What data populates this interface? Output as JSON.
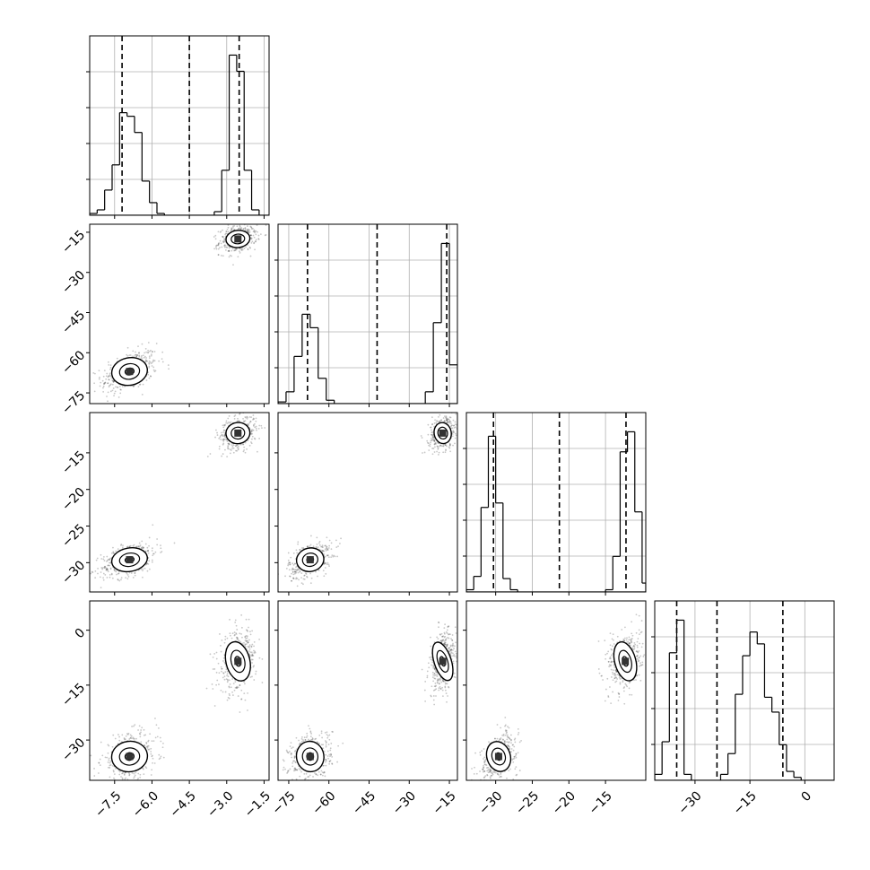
{
  "chart_data": {
    "type": "corner",
    "title": "",
    "parameters": [
      {
        "id": "p1",
        "label": "",
        "range": [
          -8.5,
          -1.3
        ],
        "ticks": [
          -7.5,
          -6.0,
          -4.5,
          -3.0,
          -1.5
        ],
        "tick_labels": [
          "−7.5",
          "−6.0",
          "−4.5",
          "−3.0",
          "−1.5"
        ]
      },
      {
        "id": "p2",
        "label": "",
        "range": [
          -79,
          -12
        ],
        "ticks": [
          -75,
          -60,
          -45,
          -30,
          -15
        ],
        "tick_labels": [
          "−75",
          "−60",
          "−45",
          "−30",
          "−15"
        ]
      },
      {
        "id": "p3",
        "label": "",
        "range": [
          -34,
          -9.5
        ],
        "ticks": [
          -30,
          -25,
          -20,
          -15
        ],
        "tick_labels": [
          "−30",
          "−25",
          "−20",
          "−15"
        ]
      },
      {
        "id": "p4",
        "label": "",
        "range": [
          -41,
          8
        ],
        "ticks": [
          -30,
          -15,
          0
        ],
        "tick_labels": [
          "−30",
          "−15",
          "0"
        ]
      }
    ],
    "marginals": [
      {
        "param": "p1",
        "bins": [
          [
            -8.5,
            -8.2,
            1
          ],
          [
            -8.2,
            -7.9,
            3
          ],
          [
            -7.9,
            -7.6,
            14
          ],
          [
            -7.6,
            -7.3,
            28
          ],
          [
            -7.3,
            -7.0,
            57
          ],
          [
            -7.0,
            -6.7,
            55
          ],
          [
            -6.7,
            -6.4,
            46
          ],
          [
            -6.4,
            -6.1,
            19
          ],
          [
            -6.1,
            -5.8,
            7
          ],
          [
            -5.8,
            -5.5,
            1
          ],
          [
            -3.5,
            -3.2,
            2
          ],
          [
            -3.2,
            -2.9,
            25
          ],
          [
            -2.9,
            -2.6,
            89
          ],
          [
            -2.6,
            -2.3,
            80
          ],
          [
            -2.3,
            -2.0,
            25
          ],
          [
            -2.0,
            -1.7,
            3
          ]
        ],
        "quantiles": [
          -7.2,
          -4.5,
          -2.5
        ]
      },
      {
        "param": "p2",
        "bins": [
          [
            -79,
            -76,
            1
          ],
          [
            -76,
            -73,
            7
          ],
          [
            -73,
            -70,
            28
          ],
          [
            -70,
            -67,
            53
          ],
          [
            -67,
            -64,
            45
          ],
          [
            -64,
            -61,
            15
          ],
          [
            -61,
            -58,
            2
          ],
          [
            -24,
            -21,
            7
          ],
          [
            -21,
            -18,
            48
          ],
          [
            -18,
            -15,
            95
          ],
          [
            -15,
            -12,
            23
          ]
        ],
        "quantiles": [
          -68,
          -42,
          -16
        ]
      },
      {
        "param": "p3",
        "bins": [
          [
            -34,
            -33,
            1
          ],
          [
            -33,
            -32,
            7
          ],
          [
            -32,
            -31,
            38
          ],
          [
            -31,
            -30,
            70
          ],
          [
            -30,
            -29,
            40
          ],
          [
            -29,
            -28,
            6
          ],
          [
            -28,
            -27,
            1
          ],
          [
            -15,
            -14,
            1
          ],
          [
            -14,
            -13,
            16
          ],
          [
            -13,
            -12,
            63
          ],
          [
            -12,
            -11,
            72
          ],
          [
            -11,
            -10,
            36
          ],
          [
            -10,
            -9.5,
            4
          ]
        ],
        "quantiles": [
          -30.3,
          -21.3,
          -12.2
        ]
      },
      {
        "param": "p4",
        "bins": [
          [
            -41,
            -39,
            2
          ],
          [
            -39,
            -37,
            13
          ],
          [
            -37,
            -35,
            43
          ],
          [
            -35,
            -33,
            54
          ],
          [
            -33,
            -31,
            2
          ],
          [
            -23,
            -21,
            2
          ],
          [
            -21,
            -19,
            9
          ],
          [
            -19,
            -17,
            29
          ],
          [
            -17,
            -15,
            42
          ],
          [
            -15,
            -13,
            50
          ],
          [
            -13,
            -11,
            46
          ],
          [
            -11,
            -9,
            28
          ],
          [
            -9,
            -7,
            23
          ],
          [
            -7,
            -5,
            12
          ],
          [
            -5,
            -3,
            3
          ],
          [
            -3,
            -1,
            1
          ]
        ],
        "quantiles": [
          -35,
          -24,
          -6
        ]
      }
    ],
    "clusters": [
      {
        "p1": -6.9,
        "p2": -67,
        "p3": -29.6,
        "p4": -34.5,
        "sd": {
          "p1": 0.45,
          "p2": 3.2,
          "p3": 1.0,
          "p4": 2.6
        }
      },
      {
        "p1": -2.55,
        "p2": -17.5,
        "p3": -12.3,
        "p4": -8.5,
        "sd": {
          "p1": 0.3,
          "p2": 2.0,
          "p3": 0.9,
          "p4": 3.4
        }
      }
    ],
    "contour_levels": [
      1.6,
      0.9,
      0.4
    ],
    "grid": true,
    "legend": "none"
  }
}
